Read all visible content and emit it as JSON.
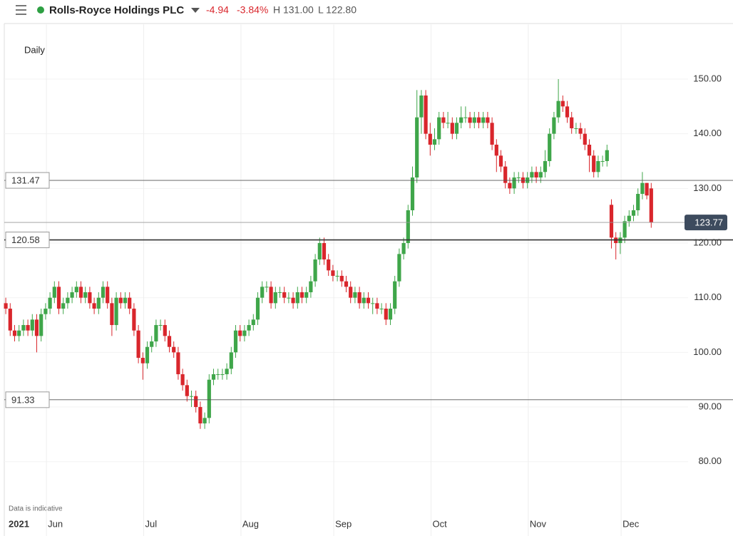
{
  "header": {
    "title": "Rolls-Royce Holdings PLC",
    "change": "-4.94",
    "change_pct": "-3.84%",
    "high": "H 131.00",
    "low": "L 122.80"
  },
  "chart_data": {
    "type": "candlestick",
    "interval": "Daily",
    "note": "Data is indicative",
    "up_color": "#3fa64a",
    "down_color": "#d9262c",
    "categories": [
      null,
      null,
      null,
      "2021",
      null,
      null,
      null,
      null,
      null,
      null,
      "Jun",
      null,
      null,
      null,
      null,
      null,
      null,
      null,
      null,
      null,
      null,
      null,
      null,
      null,
      null,
      null,
      null,
      null,
      null,
      null,
      null,
      null,
      "Jul",
      null,
      null,
      null,
      null,
      null,
      null,
      null,
      null,
      null,
      null,
      null,
      null,
      null,
      null,
      null,
      null,
      null,
      null,
      null,
      null,
      null,
      "Aug",
      null,
      null,
      null,
      null,
      null,
      null,
      null,
      null,
      null,
      null,
      null,
      null,
      null,
      null,
      null,
      null,
      null,
      null,
      null,
      null,
      "Sep",
      null,
      null,
      null,
      null,
      null,
      null,
      null,
      null,
      null,
      null,
      null,
      null,
      null,
      null,
      null,
      null,
      null,
      null,
      null,
      null,
      null,
      "Oct",
      null,
      null,
      null,
      null,
      null,
      null,
      null,
      null,
      null,
      null,
      null,
      null,
      null,
      null,
      null,
      null,
      null,
      null,
      null,
      null,
      null,
      "Nov",
      null,
      null,
      null,
      null,
      null,
      null,
      null,
      null,
      null,
      null,
      null,
      null,
      null,
      null,
      null,
      null,
      null,
      null,
      null,
      null,
      "Dec",
      null,
      null,
      null,
      null,
      null,
      null
    ],
    "ohlc": [
      [
        109,
        110,
        107,
        108
      ],
      [
        108,
        109,
        103,
        104
      ],
      [
        104,
        105,
        102,
        103
      ],
      [
        103,
        105,
        102,
        104
      ],
      [
        104,
        106,
        103,
        105
      ],
      [
        105,
        106,
        103,
        104
      ],
      [
        104,
        107,
        103,
        106
      ],
      [
        106,
        107,
        100,
        103
      ],
      [
        103,
        108,
        102,
        107
      ],
      [
        107,
        109,
        106,
        108
      ],
      [
        108,
        111,
        107,
        110
      ],
      [
        110,
        113,
        109,
        112
      ],
      [
        112,
        113,
        107,
        108
      ],
      [
        108,
        110,
        107,
        109
      ],
      [
        109,
        111,
        108,
        110
      ],
      [
        110,
        112,
        109,
        111
      ],
      [
        111,
        113,
        110,
        112
      ],
      [
        112,
        113,
        109,
        110
      ],
      [
        110,
        112,
        109,
        111
      ],
      [
        111,
        112,
        108,
        109
      ],
      [
        109,
        110,
        107,
        108
      ],
      [
        108,
        111,
        107,
        110
      ],
      [
        110,
        113,
        109,
        112
      ],
      [
        112,
        113,
        108,
        109
      ],
      [
        109,
        110,
        103,
        105
      ],
      [
        105,
        111,
        104,
        110
      ],
      [
        110,
        111,
        108,
        109
      ],
      [
        109,
        111,
        108,
        110
      ],
      [
        110,
        111,
        107,
        108
      ],
      [
        108,
        109,
        103,
        104
      ],
      [
        104,
        105,
        98,
        99
      ],
      [
        99,
        100,
        95,
        98
      ],
      [
        98,
        102,
        97,
        101
      ],
      [
        101,
        103,
        100,
        102
      ],
      [
        102,
        106,
        101,
        105
      ],
      [
        105,
        106,
        104,
        105
      ],
      [
        105,
        106,
        102,
        103
      ],
      [
        103,
        104,
        100,
        101
      ],
      [
        101,
        102,
        99,
        100
      ],
      [
        100,
        101,
        95,
        96
      ],
      [
        96,
        97,
        93,
        94
      ],
      [
        94,
        95,
        91,
        92
      ],
      [
        92,
        93,
        90,
        92
      ],
      [
        92,
        93,
        89,
        90
      ],
      [
        90,
        91,
        86,
        87
      ],
      [
        87,
        89,
        86,
        88
      ],
      [
        88,
        96,
        87,
        95
      ],
      [
        95,
        97,
        94,
        96
      ],
      [
        96,
        97,
        95,
        96
      ],
      [
        96,
        97,
        95,
        96
      ],
      [
        96,
        98,
        95,
        97
      ],
      [
        97,
        101,
        96,
        100
      ],
      [
        100,
        105,
        99,
        104
      ],
      [
        104,
        105,
        102,
        103
      ],
      [
        103,
        105,
        102,
        104
      ],
      [
        104,
        106,
        103,
        105
      ],
      [
        105,
        107,
        104,
        106
      ],
      [
        106,
        111,
        105,
        110
      ],
      [
        110,
        113,
        109,
        112
      ],
      [
        112,
        113,
        111,
        112
      ],
      [
        112,
        113,
        108,
        109
      ],
      [
        109,
        112,
        108,
        111
      ],
      [
        111,
        112,
        110,
        111
      ],
      [
        111,
        112,
        109,
        110
      ],
      [
        110,
        111,
        109,
        110
      ],
      [
        110,
        111,
        108,
        109
      ],
      [
        109,
        112,
        108,
        111
      ],
      [
        111,
        112,
        109,
        110
      ],
      [
        110,
        112,
        109,
        111
      ],
      [
        111,
        114,
        110,
        113
      ],
      [
        113,
        118,
        112,
        117
      ],
      [
        117,
        121,
        116,
        120
      ],
      [
        120,
        121,
        116,
        117
      ],
      [
        117,
        118,
        114,
        115
      ],
      [
        115,
        116,
        113,
        114
      ],
      [
        114,
        115,
        113,
        114
      ],
      [
        114,
        115,
        112,
        113
      ],
      [
        113,
        114,
        111,
        112
      ],
      [
        112,
        113,
        109,
        110
      ],
      [
        110,
        112,
        109,
        111
      ],
      [
        111,
        112,
        108,
        109
      ],
      [
        109,
        111,
        108,
        110
      ],
      [
        110,
        111,
        108,
        109
      ],
      [
        109,
        110,
        107,
        109
      ],
      [
        109,
        110,
        107,
        108
      ],
      [
        108,
        109,
        107,
        108
      ],
      [
        108,
        109,
        105,
        106
      ],
      [
        106,
        109,
        105,
        108
      ],
      [
        108,
        114,
        107,
        113
      ],
      [
        113,
        119,
        112,
        118
      ],
      [
        118,
        121,
        117,
        120
      ],
      [
        120,
        127,
        119,
        126
      ],
      [
        126,
        134,
        125,
        132
      ],
      [
        132,
        148,
        131,
        143
      ],
      [
        143,
        148,
        140,
        147
      ],
      [
        147,
        148,
        139,
        140
      ],
      [
        140,
        142,
        136,
        138
      ],
      [
        138,
        141,
        137,
        139
      ],
      [
        139,
        144,
        138,
        143
      ],
      [
        143,
        144,
        141,
        142
      ],
      [
        142,
        144,
        141,
        142
      ],
      [
        142,
        143,
        139,
        140
      ],
      [
        140,
        143,
        139,
        142
      ],
      [
        142,
        145,
        141,
        143
      ],
      [
        143,
        145,
        142,
        143
      ],
      [
        143,
        144,
        141,
        142
      ],
      [
        142,
        144,
        141,
        143
      ],
      [
        143,
        144,
        141,
        142
      ],
      [
        142,
        144,
        141,
        143
      ],
      [
        143,
        144,
        141,
        142
      ],
      [
        142,
        143,
        137,
        138
      ],
      [
        138,
        139,
        133,
        136
      ],
      [
        136,
        137,
        133,
        134
      ],
      [
        134,
        135,
        130,
        131
      ],
      [
        131,
        132,
        129,
        130
      ],
      [
        130,
        133,
        129,
        132
      ],
      [
        132,
        133,
        131,
        132
      ],
      [
        132,
        133,
        130,
        131
      ],
      [
        131,
        133,
        130,
        132
      ],
      [
        132,
        134,
        131,
        133
      ],
      [
        133,
        134,
        131,
        132
      ],
      [
        132,
        134,
        131,
        133
      ],
      [
        133,
        137,
        132,
        135
      ],
      [
        135,
        141,
        134,
        140
      ],
      [
        140,
        144,
        139,
        143
      ],
      [
        143,
        150,
        142,
        146
      ],
      [
        146,
        147,
        144,
        145
      ],
      [
        145,
        146,
        142,
        143
      ],
      [
        143,
        144,
        140,
        141
      ],
      [
        141,
        142,
        140,
        141
      ],
      [
        141,
        142,
        139,
        140
      ],
      [
        140,
        141,
        137,
        138
      ],
      [
        138,
        139,
        133,
        136
      ],
      [
        136,
        137,
        132,
        133
      ],
      [
        133,
        136,
        132,
        135
      ],
      [
        135,
        136,
        134,
        135
      ],
      [
        135,
        138,
        134,
        137
      ],
      [
        127,
        128,
        119,
        121
      ],
      [
        121,
        122,
        117,
        120
      ],
      [
        120,
        122,
        118,
        121
      ],
      [
        121,
        125,
        120,
        124
      ],
      [
        124,
        126,
        123,
        125
      ],
      [
        125,
        127,
        124,
        126
      ],
      [
        126,
        130,
        125,
        129
      ],
      [
        129,
        133,
        128,
        131
      ],
      [
        131,
        131,
        128,
        128.71
      ],
      [
        130,
        131,
        122.8,
        123.77
      ]
    ],
    "levels": [
      131.47,
      120.58,
      91.33
    ],
    "ylim": [
      70,
      160
    ],
    "yticks": [
      {
        "value": 80,
        "label": "80.00"
      },
      {
        "value": 90,
        "label": "90.00"
      },
      {
        "value": 100,
        "label": "100.00"
      },
      {
        "value": 110,
        "label": "110.00"
      },
      {
        "value": 120,
        "label": "120.00"
      },
      {
        "value": 130,
        "label": "130.00"
      },
      {
        "value": 140,
        "label": "140.00"
      },
      {
        "value": 150,
        "label": "150.00"
      }
    ],
    "grid": true
  }
}
